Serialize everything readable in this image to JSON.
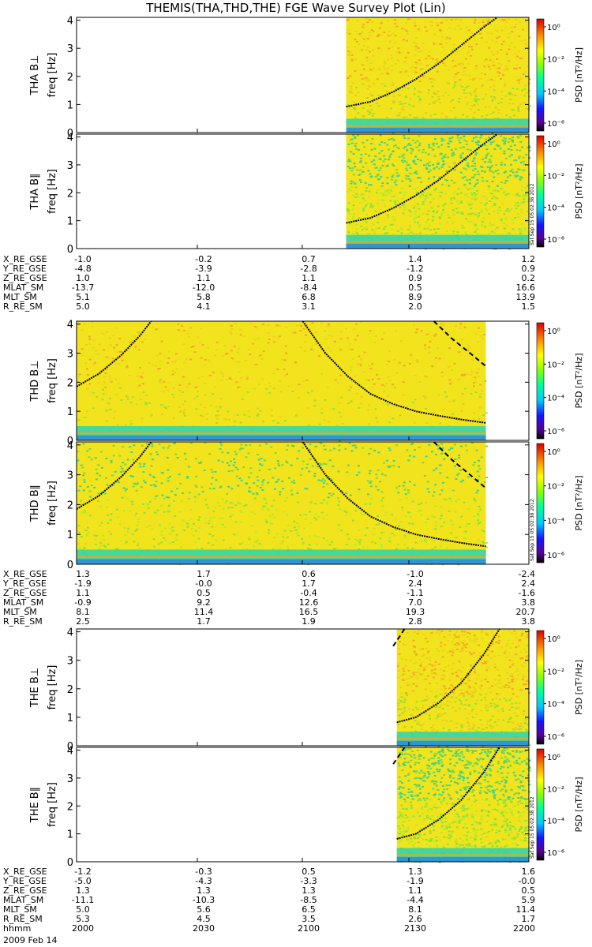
{
  "title": "THEMIS(THA,THD,THE) FGE Wave Survey Plot (Lin)",
  "date": "2009 Feb 14",
  "colorbar": {
    "label": "PSD [nT²/Hz]",
    "ticks": [
      "10⁰",
      "10⁻²",
      "10⁻⁴",
      "10⁻⁶"
    ],
    "stamp": "Sat Sep 15 05:02:38 2012"
  },
  "ephem_labels": [
    "X_RE_GSE",
    "Y_RE_GSE",
    "Z_RE_GSE",
    "MLAT_SM",
    "MLT_SM",
    "R_RE_SM"
  ],
  "hhmm_label": "hhmm",
  "hhmm_values": [
    "2000",
    "2030",
    "2100",
    "2130",
    "2200"
  ],
  "colors": {
    "spectrogram_background": "#f2e41c",
    "low_band": "#2ad3b0",
    "curve": "#000000"
  },
  "panels": [
    {
      "id": "tha-bperp",
      "ylabel": "THA B⊥",
      "funit": "freq [Hz]",
      "yticks": [
        "0",
        "1",
        "2",
        "3",
        "4"
      ],
      "data_start": 0.596,
      "data_end": 1.0,
      "parallel": false,
      "curves": [
        {
          "x": [
            0.596,
            0.65,
            0.7,
            0.75,
            0.8,
            0.85,
            0.9,
            0.93
          ],
          "y": [
            0.92,
            1.1,
            1.45,
            1.9,
            2.45,
            3.1,
            3.75,
            4.1
          ],
          "dash": false
        }
      ]
    },
    {
      "id": "tha-bpar",
      "ylabel": "THA B∥",
      "funit": "freq [Hz]",
      "yticks": [
        "0",
        "1",
        "2",
        "3",
        "4"
      ],
      "data_start": 0.596,
      "data_end": 1.0,
      "parallel": true,
      "curves": [
        {
          "x": [
            0.596,
            0.65,
            0.7,
            0.75,
            0.8,
            0.85,
            0.9,
            0.93
          ],
          "y": [
            0.92,
            1.1,
            1.45,
            1.9,
            2.45,
            3.1,
            3.75,
            4.1
          ],
          "dash": false
        }
      ]
    },
    {
      "id": "thd-bperp",
      "ylabel": "THD B⊥",
      "funit": "freq [Hz]",
      "yticks": [
        "0",
        "1",
        "2",
        "3",
        "4"
      ],
      "data_start": 0.0,
      "data_end": 0.905,
      "parallel": false,
      "curves": [
        {
          "x": [
            0.0,
            0.05,
            0.1,
            0.14,
            0.165
          ],
          "y": [
            1.85,
            2.3,
            2.95,
            3.6,
            4.1
          ],
          "dash": false
        },
        {
          "x": [
            0.5,
            0.55,
            0.6,
            0.65,
            0.7,
            0.75,
            0.8,
            0.85,
            0.905
          ],
          "y": [
            4.1,
            3.0,
            2.2,
            1.6,
            1.25,
            1.0,
            0.85,
            0.72,
            0.6
          ],
          "dash": false
        },
        {
          "x": [
            0.79,
            0.83,
            0.87,
            0.905
          ],
          "y": [
            4.1,
            3.5,
            3.0,
            2.55
          ],
          "dash": true
        }
      ]
    },
    {
      "id": "thd-bpar",
      "ylabel": "THD B∥",
      "funit": "freq [Hz]",
      "yticks": [
        "0",
        "1",
        "2",
        "3",
        "4"
      ],
      "data_start": 0.0,
      "data_end": 0.905,
      "parallel": true,
      "curves": [
        {
          "x": [
            0.0,
            0.05,
            0.1,
            0.14,
            0.165
          ],
          "y": [
            1.85,
            2.3,
            2.95,
            3.6,
            4.1
          ],
          "dash": false
        },
        {
          "x": [
            0.5,
            0.55,
            0.6,
            0.65,
            0.7,
            0.75,
            0.8,
            0.85,
            0.905
          ],
          "y": [
            4.1,
            3.0,
            2.2,
            1.6,
            1.25,
            1.0,
            0.85,
            0.72,
            0.6
          ],
          "dash": false
        },
        {
          "x": [
            0.79,
            0.83,
            0.87,
            0.905
          ],
          "y": [
            4.1,
            3.5,
            3.0,
            2.55
          ],
          "dash": true
        }
      ]
    },
    {
      "id": "the-bperp",
      "ylabel": "THE B⊥",
      "funit": "freq [Hz]",
      "yticks": [
        "0",
        "1",
        "2",
        "3",
        "4"
      ],
      "data_start": 0.708,
      "data_end": 1.0,
      "parallel": false,
      "curves": [
        {
          "x": [
            0.708,
            0.75,
            0.8,
            0.85,
            0.9,
            0.935
          ],
          "y": [
            0.82,
            1.0,
            1.5,
            2.2,
            3.2,
            4.1
          ],
          "dash": false
        },
        {
          "x": [
            0.7,
            0.715,
            0.725
          ],
          "y": [
            3.5,
            3.85,
            4.1
          ],
          "dash": true
        }
      ]
    },
    {
      "id": "the-bpar",
      "ylabel": "THE B∥",
      "funit": "freq [Hz]",
      "yticks": [
        "0",
        "1",
        "2",
        "3",
        "4"
      ],
      "data_start": 0.708,
      "data_end": 1.0,
      "parallel": true,
      "curves": [
        {
          "x": [
            0.708,
            0.75,
            0.8,
            0.85,
            0.9,
            0.935
          ],
          "y": [
            0.82,
            1.0,
            1.5,
            2.2,
            3.2,
            4.1
          ],
          "dash": false
        },
        {
          "x": [
            0.7,
            0.715,
            0.725
          ],
          "y": [
            3.5,
            3.85,
            4.1
          ],
          "dash": true
        }
      ]
    }
  ],
  "ephem_blocks": [
    {
      "id": "tha",
      "rows": [
        [
          "-1.0",
          "-0.2",
          "0.7",
          "1.4",
          "1.2"
        ],
        [
          "-4.8",
          "-3.9",
          "-2.8",
          "-1.2",
          "0.9"
        ],
        [
          "1.0",
          "1.1",
          "1.1",
          "0.9",
          "0.2"
        ],
        [
          "-13.7",
          "-12.0",
          "-8.4",
          "0.5",
          "16.6"
        ],
        [
          "5.1",
          "5.8",
          "6.8",
          "8.9",
          "13.9"
        ],
        [
          "5.0",
          "4.1",
          "3.1",
          "2.0",
          "1.5"
        ]
      ]
    },
    {
      "id": "thd",
      "rows": [
        [
          "1.3",
          "1.7",
          "0.6",
          "-1.0",
          "-2.4"
        ],
        [
          "-1.9",
          "-0.0",
          "1.7",
          "2.4",
          "2.4"
        ],
        [
          "1.1",
          "0.5",
          "-0.4",
          "-1.1",
          "-1.6"
        ],
        [
          "-0.9",
          "9.2",
          "12.6",
          "7.0",
          "3.8"
        ],
        [
          "8.1",
          "11.4",
          "16.5",
          "19.3",
          "20.7"
        ],
        [
          "2.5",
          "1.7",
          "1.9",
          "2.8",
          "3.8"
        ]
      ]
    },
    {
      "id": "the",
      "rows": [
        [
          "-1.2",
          "-0.3",
          "0.5",
          "1.3",
          "1.6"
        ],
        [
          "-5.0",
          "-4.3",
          "-3.3",
          "-1.9",
          "-0.0"
        ],
        [
          "1.3",
          "1.3",
          "1.3",
          "1.1",
          "0.5"
        ],
        [
          "-11.1",
          "-10.3",
          "-8.5",
          "-4.4",
          "5.9"
        ],
        [
          "5.0",
          "5.6",
          "6.5",
          "8.1",
          "11.4"
        ],
        [
          "5.3",
          "4.5",
          "3.5",
          "2.6",
          "1.7"
        ]
      ]
    }
  ],
  "chart_data": {
    "type": "heatmap",
    "title": "THEMIS(THA,THD,THE) FGE Wave Survey Plot (Lin)",
    "xlabel": "hhmm",
    "x_ticks": [
      "2000",
      "2030",
      "2100",
      "2130",
      "2200"
    ],
    "ylabel": "freq [Hz]",
    "ylim": [
      0,
      4
    ],
    "colorbar_label": "PSD [nT²/Hz]",
    "colorbar_range": [
      "1e-6",
      "1e0"
    ],
    "colorbar_scale": "log",
    "series": [
      {
        "name": "THA B⊥"
      },
      {
        "name": "THA B∥"
      },
      {
        "name": "THD B⊥"
      },
      {
        "name": "THD B∥"
      },
      {
        "name": "THE B⊥"
      },
      {
        "name": "THE B∥"
      }
    ]
  }
}
